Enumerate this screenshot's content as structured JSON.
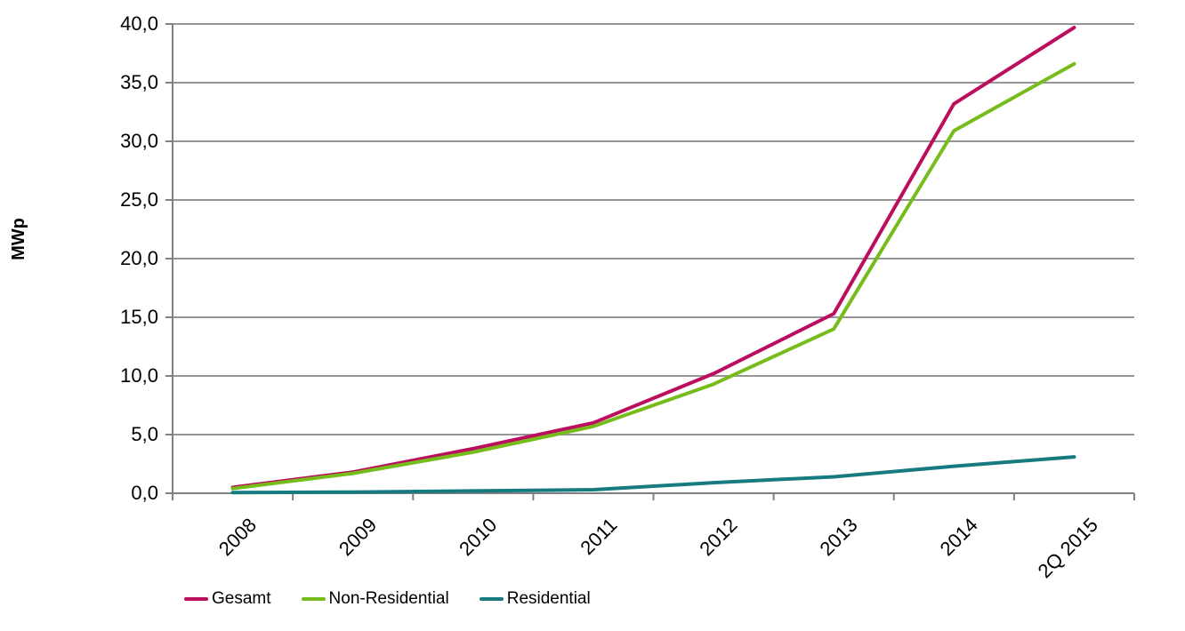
{
  "chart_data": {
    "type": "line",
    "categories": [
      "2008",
      "2009",
      "2010",
      "2011",
      "2012",
      "2013",
      "2014",
      "2Q 2015"
    ],
    "series": [
      {
        "name": "Gesamt",
        "color": "#BC0E5E",
        "values": [
          0.5,
          1.8,
          3.8,
          6.0,
          10.2,
          15.3,
          33.2,
          39.7
        ]
      },
      {
        "name": "Non-Residential",
        "color": "#76BC1A",
        "values": [
          0.4,
          1.7,
          3.5,
          5.7,
          9.3,
          14.0,
          30.9,
          36.6
        ]
      },
      {
        "name": "Residential",
        "color": "#157B80",
        "values": [
          0.05,
          0.1,
          0.2,
          0.3,
          0.9,
          1.4,
          2.3,
          3.1
        ]
      }
    ],
    "title": "",
    "xlabel": "",
    "ylabel": "MWp",
    "ylim": [
      0,
      40
    ],
    "ytick_step": 5,
    "ytick_labels": [
      "0,0",
      "5,0",
      "10,0",
      "15,0",
      "20,0",
      "25,0",
      "30,0",
      "35,0",
      "40,0"
    ],
    "grid": true,
    "legend_position": "bottom-left"
  },
  "colors": {
    "background": "#FFFFFF",
    "gridline": "#969696",
    "axis": "#808080",
    "text": "#000000"
  }
}
